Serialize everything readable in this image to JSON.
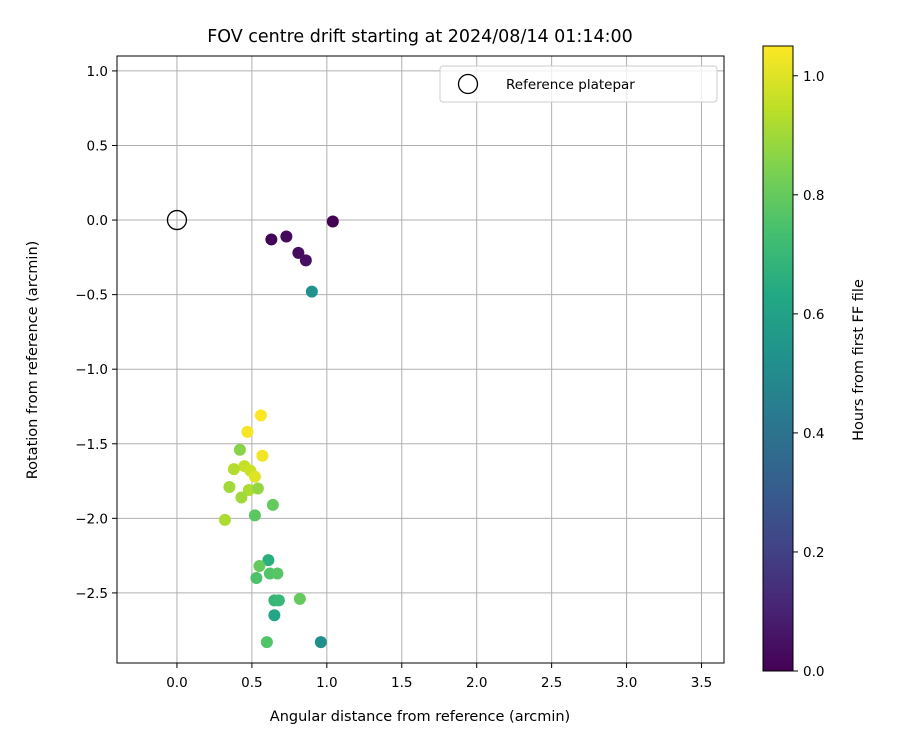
{
  "chart_data": {
    "type": "scatter",
    "title": "FOV centre drift starting at 2024/08/14 01:14:00",
    "xlabel": "Angular distance from reference (arcmin)",
    "ylabel": "Rotation from reference (arcmin)",
    "xlim": [
      -0.4,
      3.65
    ],
    "ylim": [
      -2.97,
      1.1
    ],
    "xticks": [
      0.0,
      0.5,
      1.0,
      1.5,
      2.0,
      2.5,
      3.0,
      3.5
    ],
    "xtick_labels": [
      "0.0",
      "0.5",
      "1.0",
      "1.5",
      "2.0",
      "2.5",
      "3.0",
      "3.5"
    ],
    "yticks": [
      1.0,
      0.5,
      0.0,
      -0.5,
      -1.0,
      -1.5,
      -2.0,
      -2.5
    ],
    "ytick_labels": [
      "1.0",
      "0.5",
      "0.0",
      "−0.5",
      "−1.0",
      "−1.5",
      "−2.0",
      "−2.5"
    ],
    "grid": true,
    "legend": {
      "position": "top-right",
      "entries": [
        "Reference platepar"
      ]
    },
    "reference_point": {
      "x": 0.0,
      "y": 0.0,
      "label": "Reference platepar"
    },
    "colorbar": {
      "label": "Hours from first FF file",
      "range": [
        0.0,
        1.05
      ],
      "colormap": "viridis",
      "ticks": [
        0.0,
        0.2,
        0.4,
        0.6,
        0.8,
        1.0
      ],
      "tick_labels": [
        "0.0",
        "0.2",
        "0.4",
        "0.6",
        "0.8",
        "1.0"
      ]
    },
    "points": [
      {
        "x": 1.04,
        "y": -0.01,
        "t": 0.0
      },
      {
        "x": 0.63,
        "y": -0.13,
        "t": 0.01
      },
      {
        "x": 0.73,
        "y": -0.11,
        "t": 0.02
      },
      {
        "x": 0.81,
        "y": -0.22,
        "t": 0.03
      },
      {
        "x": 0.86,
        "y": -0.27,
        "t": 0.04
      },
      {
        "x": 0.9,
        "y": -0.48,
        "t": 0.53
      },
      {
        "x": 0.56,
        "y": -1.31,
        "t": 1.05
      },
      {
        "x": 0.47,
        "y": -1.42,
        "t": 1.04
      },
      {
        "x": 0.57,
        "y": -1.58,
        "t": 1.03
      },
      {
        "x": 0.42,
        "y": -1.54,
        "t": 0.86
      },
      {
        "x": 0.45,
        "y": -1.65,
        "t": 0.96
      },
      {
        "x": 0.38,
        "y": -1.67,
        "t": 0.93
      },
      {
        "x": 0.49,
        "y": -1.68,
        "t": 0.97
      },
      {
        "x": 0.52,
        "y": -1.72,
        "t": 1.0
      },
      {
        "x": 0.35,
        "y": -1.79,
        "t": 0.9
      },
      {
        "x": 0.48,
        "y": -1.81,
        "t": 0.92
      },
      {
        "x": 0.54,
        "y": -1.8,
        "t": 0.88
      },
      {
        "x": 0.43,
        "y": -1.86,
        "t": 0.9
      },
      {
        "x": 0.64,
        "y": -1.91,
        "t": 0.8
      },
      {
        "x": 0.52,
        "y": -1.98,
        "t": 0.78
      },
      {
        "x": 0.32,
        "y": -2.01,
        "t": 0.92
      },
      {
        "x": 0.61,
        "y": -2.28,
        "t": 0.66
      },
      {
        "x": 0.55,
        "y": -2.32,
        "t": 0.8
      },
      {
        "x": 0.62,
        "y": -2.37,
        "t": 0.76
      },
      {
        "x": 0.67,
        "y": -2.37,
        "t": 0.77
      },
      {
        "x": 0.53,
        "y": -2.4,
        "t": 0.75
      },
      {
        "x": 0.65,
        "y": -2.55,
        "t": 0.69
      },
      {
        "x": 0.68,
        "y": -2.55,
        "t": 0.7
      },
      {
        "x": 0.82,
        "y": -2.54,
        "t": 0.8
      },
      {
        "x": 0.65,
        "y": -2.65,
        "t": 0.62
      },
      {
        "x": 0.6,
        "y": -2.83,
        "t": 0.76
      },
      {
        "x": 0.96,
        "y": -2.83,
        "t": 0.52
      }
    ]
  }
}
